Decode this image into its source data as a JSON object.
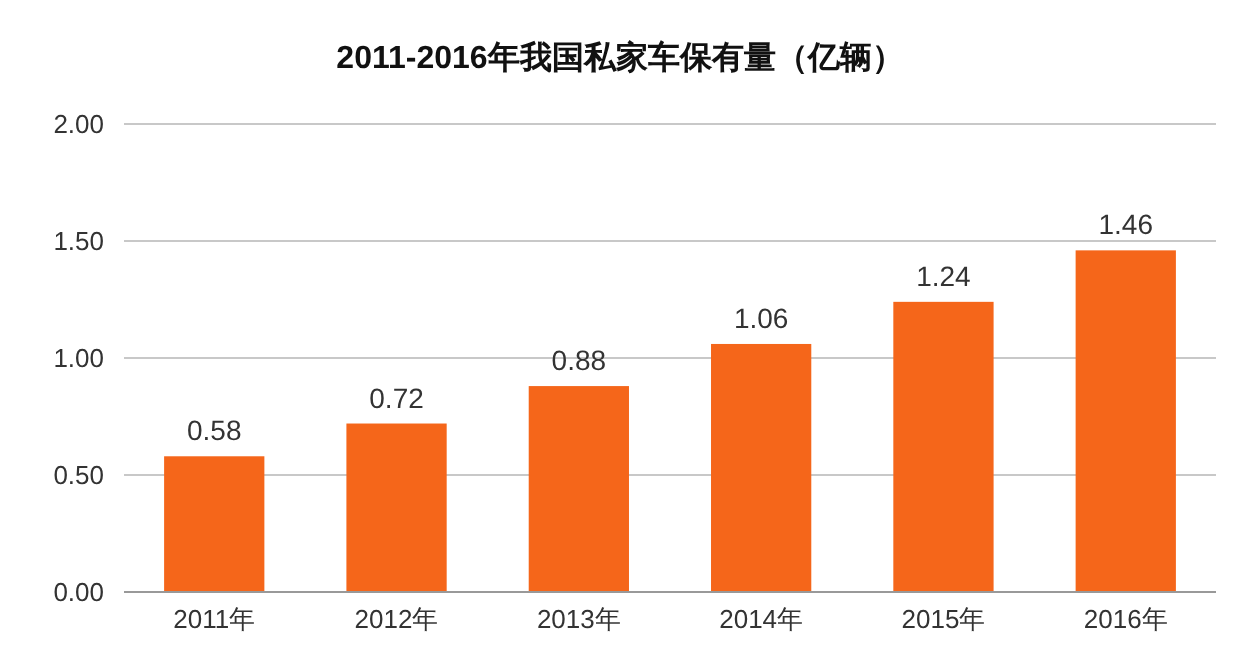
{
  "chart_data": {
    "type": "bar",
    "title": "2011-2016年我国私家车保有量（亿辆）",
    "categories": [
      "2011年",
      "2012年",
      "2013年",
      "2014年",
      "2015年",
      "2016年"
    ],
    "values": [
      0.58,
      0.72,
      0.88,
      1.06,
      1.24,
      1.46
    ],
    "color": "#f5661a",
    "ylim": [
      0,
      2
    ],
    "yticks": [
      {
        "value": 0,
        "label": "0.00"
      },
      {
        "value": 0.5,
        "label": "0.50"
      },
      {
        "value": 1,
        "label": "1.00"
      },
      {
        "value": 1.5,
        "label": "1.50"
      },
      {
        "value": 2,
        "label": "2.00"
      }
    ],
    "grid": "y",
    "data_labels": true
  }
}
